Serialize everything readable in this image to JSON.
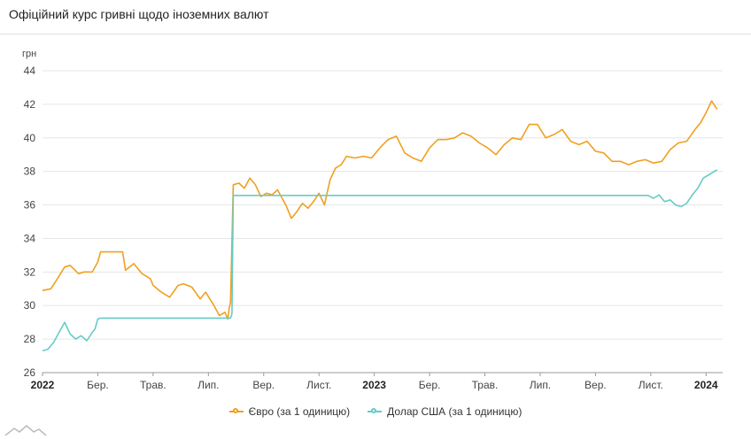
{
  "header": {
    "title": "Офіційний курс гривні щодо іноземних валют"
  },
  "chart_data": {
    "type": "line",
    "title": "Офіційний курс гривні щодо іноземних валют",
    "ylabel": "грн",
    "ylim": [
      26,
      44
    ],
    "yticks": [
      26,
      28,
      30,
      32,
      34,
      36,
      38,
      40,
      42,
      44
    ],
    "xlim": [
      0,
      24.6
    ],
    "xticks": [
      {
        "label": "2022",
        "month": 0,
        "bold": true
      },
      {
        "label": "Бер.",
        "month": 2
      },
      {
        "label": "Трав.",
        "month": 4
      },
      {
        "label": "Лип.",
        "month": 6
      },
      {
        "label": "Вер.",
        "month": 8
      },
      {
        "label": "Лист.",
        "month": 10
      },
      {
        "label": "2023",
        "month": 12,
        "bold": true
      },
      {
        "label": "Бер.",
        "month": 14
      },
      {
        "label": "Трав.",
        "month": 16
      },
      {
        "label": "Лип.",
        "month": 18
      },
      {
        "label": "Вер.",
        "month": 20
      },
      {
        "label": "Лист.",
        "month": 22
      },
      {
        "label": "2024",
        "month": 24,
        "bold": true
      }
    ],
    "series": [
      {
        "name": "Євро (за 1 одиницю)",
        "color": "#f0a020",
        "x": [
          0,
          0.3,
          0.5,
          0.8,
          1.0,
          1.3,
          1.5,
          1.8,
          2.0,
          2.1,
          2.9,
          3.0,
          3.3,
          3.6,
          3.9,
          4.0,
          4.3,
          4.6,
          4.9,
          5.1,
          5.4,
          5.7,
          5.9,
          6.2,
          6.4,
          6.6,
          6.7,
          6.75,
          6.8,
          6.9,
          7.1,
          7.3,
          7.5,
          7.7,
          7.9,
          8.1,
          8.3,
          8.5,
          8.7,
          8.8,
          9.0,
          9.2,
          9.4,
          9.6,
          9.8,
          10.0,
          10.2,
          10.4,
          10.6,
          10.8,
          11.0,
          11.3,
          11.6,
          11.9,
          12.2,
          12.5,
          12.8,
          13.1,
          13.4,
          13.7,
          14.0,
          14.3,
          14.6,
          14.9,
          15.2,
          15.5,
          15.8,
          16.1,
          16.4,
          16.7,
          17.0,
          17.3,
          17.6,
          17.9,
          18.2,
          18.5,
          18.8,
          19.1,
          19.4,
          19.7,
          20.0,
          20.3,
          20.6,
          20.9,
          21.2,
          21.5,
          21.8,
          22.1,
          22.4,
          22.7,
          23.0,
          23.3,
          23.6,
          23.8,
          24.0,
          24.2,
          24.4
        ],
        "values": [
          30.9,
          31.0,
          31.5,
          32.3,
          32.4,
          31.9,
          32.0,
          32.0,
          32.6,
          33.2,
          33.2,
          32.1,
          32.5,
          31.9,
          31.6,
          31.2,
          30.8,
          30.5,
          31.2,
          31.3,
          31.1,
          30.4,
          30.8,
          30.0,
          29.4,
          29.6,
          29.2,
          29.8,
          30.2,
          37.2,
          37.3,
          37.0,
          37.6,
          37.2,
          36.5,
          36.7,
          36.6,
          36.9,
          36.3,
          36.0,
          35.2,
          35.6,
          36.1,
          35.8,
          36.2,
          36.7,
          36.0,
          37.5,
          38.2,
          38.4,
          38.9,
          38.8,
          38.9,
          38.8,
          39.4,
          39.9,
          40.1,
          39.1,
          38.8,
          38.6,
          39.4,
          39.9,
          39.9,
          40.0,
          40.3,
          40.1,
          39.7,
          39.4,
          39.0,
          39.6,
          40.0,
          39.9,
          40.8,
          40.8,
          40.0,
          40.2,
          40.5,
          39.8,
          39.6,
          39.8,
          39.2,
          39.1,
          38.6,
          38.6,
          38.4,
          38.6,
          38.7,
          38.5,
          38.6,
          39.3,
          39.7,
          39.8,
          40.5,
          40.9,
          41.5,
          42.2,
          41.7
        ]
      },
      {
        "name": "Долар США (за 1 одиницю)",
        "color": "#66ccc6",
        "x": [
          0,
          0.2,
          0.4,
          0.6,
          0.8,
          1.0,
          1.2,
          1.4,
          1.6,
          1.8,
          1.9,
          2.0,
          2.1,
          2.2,
          6.8,
          6.85,
          6.9,
          21.9,
          22.1,
          22.3,
          22.5,
          22.7,
          22.9,
          23.1,
          23.3,
          23.5,
          23.7,
          23.9,
          24.1,
          24.3,
          24.4
        ],
        "values": [
          27.3,
          27.4,
          27.8,
          28.4,
          29.0,
          28.3,
          28.0,
          28.2,
          27.9,
          28.4,
          28.6,
          29.2,
          29.25,
          29.25,
          29.25,
          29.5,
          36.57,
          36.57,
          36.4,
          36.6,
          36.2,
          36.3,
          36.0,
          35.9,
          36.1,
          36.6,
          37.0,
          37.6,
          37.8,
          38.0,
          38.1
        ]
      }
    ]
  },
  "legend": {
    "items": [
      {
        "label": "Євро (за 1 одиницю)",
        "color": "#f0a020"
      },
      {
        "label": "Долар США (за 1 одиницю)",
        "color": "#66ccc6"
      }
    ]
  }
}
